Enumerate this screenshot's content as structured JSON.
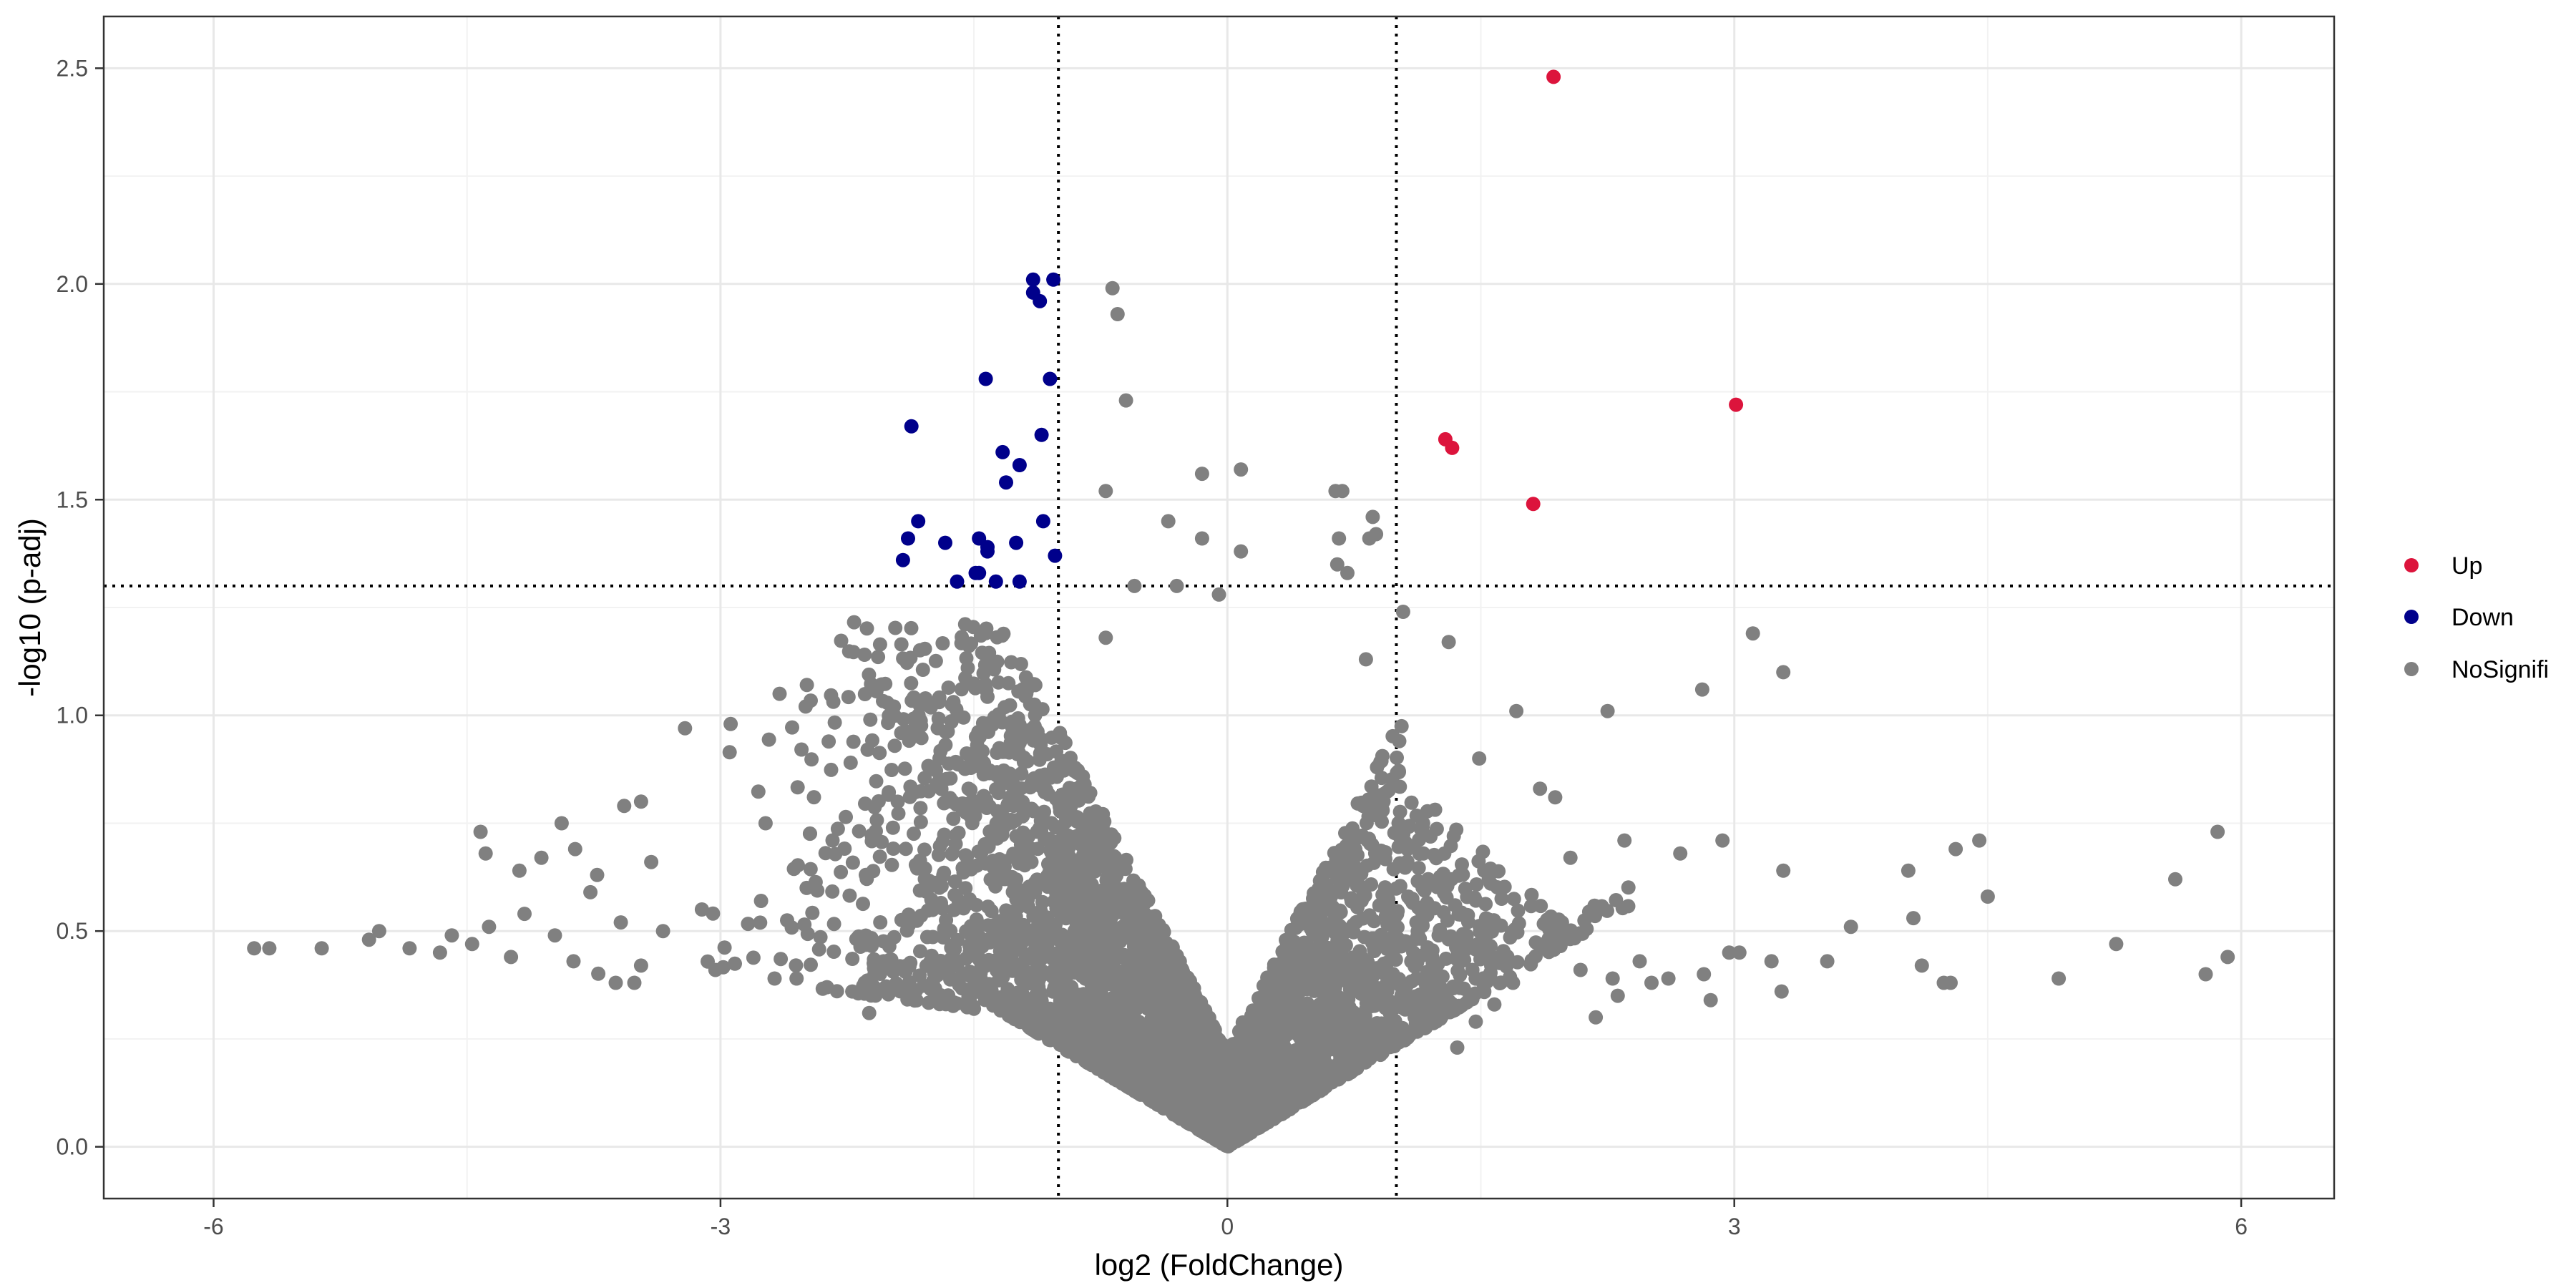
{
  "chart_data": {
    "type": "scatter",
    "title": "",
    "xlabel": "log2 (FoldChange)",
    "ylabel": "-log10 (p-adj)",
    "xlim": [
      -6.65,
      6.55
    ],
    "ylim": [
      -0.12,
      2.62
    ],
    "x_ticks": [
      -6,
      -3,
      0,
      3,
      6
    ],
    "x_tick_labels": [
      "-6",
      "-3",
      "0",
      "3",
      "6"
    ],
    "y_ticks": [
      0,
      0.5,
      1.0,
      1.5,
      2.0,
      2.5
    ],
    "y_tick_labels": [
      "0.0",
      "0.5",
      "1.0",
      "1.5",
      "2.0",
      "2.5"
    ],
    "x_minor_ticks": [
      -4.5,
      -1.5,
      1.5,
      4.5
    ],
    "y_minor_ticks": [
      0.25,
      0.75,
      1.25,
      1.75,
      2.25
    ],
    "grid": true,
    "legend_position": "right",
    "thresholds": {
      "vertical": [
        -1,
        1
      ],
      "horizontal": [
        1.3
      ]
    },
    "colors": {
      "Up": "#dc143c",
      "Down": "#00008b",
      "NoSignifi": "#808080"
    },
    "series": [
      {
        "name": "Up",
        "points": [
          [
            1.93,
            2.48
          ],
          [
            3.01,
            1.72
          ],
          [
            1.29,
            1.64
          ],
          [
            1.33,
            1.62
          ],
          [
            1.81,
            1.49
          ]
        ]
      },
      {
        "name": "Down",
        "points": [
          [
            -1.15,
            2.01
          ],
          [
            -1.03,
            2.01
          ],
          [
            -1.15,
            1.98
          ],
          [
            -1.11,
            1.96
          ],
          [
            -1.43,
            1.78
          ],
          [
            -1.05,
            1.78
          ],
          [
            -1.87,
            1.67
          ],
          [
            -1.1,
            1.65
          ],
          [
            -1.33,
            1.61
          ],
          [
            -1.23,
            1.58
          ],
          [
            -1.31,
            1.54
          ],
          [
            -1.09,
            1.45
          ],
          [
            -1.83,
            1.45
          ],
          [
            -1.47,
            1.41
          ],
          [
            -1.67,
            1.4
          ],
          [
            -1.89,
            1.41
          ],
          [
            -1.25,
            1.4
          ],
          [
            -1.42,
            1.39
          ],
          [
            -1.42,
            1.38
          ],
          [
            -1.02,
            1.37
          ],
          [
            -1.92,
            1.36
          ],
          [
            -1.49,
            1.33
          ],
          [
            -1.47,
            1.33
          ],
          [
            -1.6,
            1.31
          ],
          [
            -1.37,
            1.31
          ],
          [
            -1.23,
            1.31
          ]
        ]
      },
      {
        "name": "NoSignifi",
        "points": [
          [
            -0.68,
            1.99
          ],
          [
            -0.65,
            1.93
          ],
          [
            -0.6,
            1.73
          ],
          [
            -0.15,
            1.56
          ],
          [
            0.08,
            1.57
          ],
          [
            0.64,
            1.52
          ],
          [
            0.68,
            1.52
          ],
          [
            -0.72,
            1.52
          ],
          [
            0.86,
            1.46
          ],
          [
            -0.35,
            1.45
          ],
          [
            -0.15,
            1.41
          ],
          [
            0.66,
            1.41
          ],
          [
            0.84,
            1.41
          ],
          [
            0.88,
            1.42
          ],
          [
            0.08,
            1.38
          ],
          [
            0.65,
            1.35
          ],
          [
            0.71,
            1.33
          ],
          [
            -0.05,
            1.28
          ],
          [
            -0.3,
            1.3
          ],
          [
            -0.55,
            1.3
          ],
          [
            1.04,
            1.24
          ],
          [
            1.31,
            1.17
          ],
          [
            3.11,
            1.19
          ],
          [
            3.29,
            1.1
          ],
          [
            -0.72,
            1.18
          ],
          [
            0.82,
            1.13
          ],
          [
            1.71,
            1.01
          ],
          [
            2.81,
            1.06
          ],
          [
            2.25,
            1.01
          ],
          [
            -3.21,
            0.97
          ],
          [
            -2.94,
            0.98
          ],
          [
            -2.65,
            1.05
          ],
          [
            1.49,
            0.9
          ],
          [
            1.85,
            0.83
          ],
          [
            1.94,
            0.81
          ],
          [
            -3.47,
            0.8
          ],
          [
            -3.57,
            0.79
          ],
          [
            -3.94,
            0.75
          ],
          [
            -4.42,
            0.73
          ],
          [
            -4.39,
            0.68
          ],
          [
            -4.06,
            0.67
          ],
          [
            -3.86,
            0.69
          ],
          [
            -3.41,
            0.66
          ],
          [
            -3.73,
            0.63
          ],
          [
            -4.19,
            0.64
          ],
          [
            -3.77,
            0.59
          ],
          [
            -4.16,
            0.54
          ],
          [
            -4.37,
            0.51
          ],
          [
            -4.59,
            0.49
          ],
          [
            -4.47,
            0.47
          ],
          [
            -3.98,
            0.49
          ],
          [
            -3.59,
            0.52
          ],
          [
            -3.34,
            0.5
          ],
          [
            -3.11,
            0.55
          ],
          [
            -2.76,
            0.57
          ],
          [
            -2.49,
            0.6
          ],
          [
            -2.14,
            0.63
          ],
          [
            -5.02,
            0.5
          ],
          [
            -5.08,
            0.48
          ],
          [
            -5.36,
            0.46
          ],
          [
            -5.67,
            0.46
          ],
          [
            -5.76,
            0.46
          ],
          [
            -4.84,
            0.46
          ],
          [
            -4.66,
            0.45
          ],
          [
            -4.24,
            0.44
          ],
          [
            -3.87,
            0.43
          ],
          [
            -3.47,
            0.42
          ],
          [
            -3.03,
            0.41
          ],
          [
            -2.68,
            0.39
          ],
          [
            -2.37,
            0.37
          ],
          [
            -3.51,
            0.38
          ],
          [
            -3.62,
            0.38
          ],
          [
            -2.12,
            0.31
          ],
          [
            -2.22,
            0.36
          ],
          [
            -2.55,
            0.39
          ],
          [
            2.68,
            0.68
          ],
          [
            2.93,
            0.71
          ],
          [
            3.29,
            0.64
          ],
          [
            4.03,
            0.64
          ],
          [
            4.31,
            0.69
          ],
          [
            4.45,
            0.71
          ],
          [
            4.06,
            0.53
          ],
          [
            4.5,
            0.58
          ],
          [
            5.61,
            0.62
          ],
          [
            5.86,
            0.73
          ],
          [
            3.69,
            0.51
          ],
          [
            5.26,
            0.47
          ],
          [
            5.92,
            0.44
          ],
          [
            4.11,
            0.42
          ],
          [
            4.24,
            0.38
          ],
          [
            4.28,
            0.38
          ],
          [
            4.92,
            0.39
          ],
          [
            5.79,
            0.4
          ],
          [
            3.55,
            0.43
          ],
          [
            3.28,
            0.36
          ],
          [
            3.22,
            0.43
          ],
          [
            2.97,
            0.45
          ],
          [
            3.03,
            0.45
          ],
          [
            2.82,
            0.4
          ],
          [
            2.86,
            0.34
          ],
          [
            2.61,
            0.39
          ],
          [
            2.51,
            0.38
          ],
          [
            2.44,
            0.43
          ],
          [
            2.28,
            0.39
          ],
          [
            2.31,
            0.35
          ],
          [
            2.18,
            0.3
          ],
          [
            2.09,
            0.41
          ],
          [
            1.98,
            0.52
          ],
          [
            1.87,
            0.46
          ],
          [
            1.69,
            0.38
          ],
          [
            1.58,
            0.33
          ],
          [
            1.47,
            0.29
          ],
          [
            1.45,
            0.41
          ],
          [
            1.36,
            0.23
          ],
          [
            1.25,
            0.49
          ],
          [
            1.12,
            0.39
          ],
          [
            0.98,
            0.27
          ],
          [
            0.91,
            0.36
          ],
          [
            1.07,
            0.58
          ],
          [
            1.16,
            0.68
          ],
          [
            1.34,
            0.72
          ],
          [
            1.52,
            0.64
          ],
          [
            2.03,
            0.67
          ],
          [
            2.35,
            0.71
          ]
        ]
      }
    ],
    "generated_cloud": {
      "series": "NoSignifi",
      "count": 4200,
      "x_range": [
        -4.9,
        2.4
      ],
      "y_range": [
        0.0,
        1.25
      ]
    }
  },
  "legend": {
    "items": [
      {
        "label": "Up",
        "color": "#dc143c"
      },
      {
        "label": "Down",
        "color": "#00008b"
      },
      {
        "label": "NoSignifi",
        "color": "#808080"
      }
    ]
  }
}
